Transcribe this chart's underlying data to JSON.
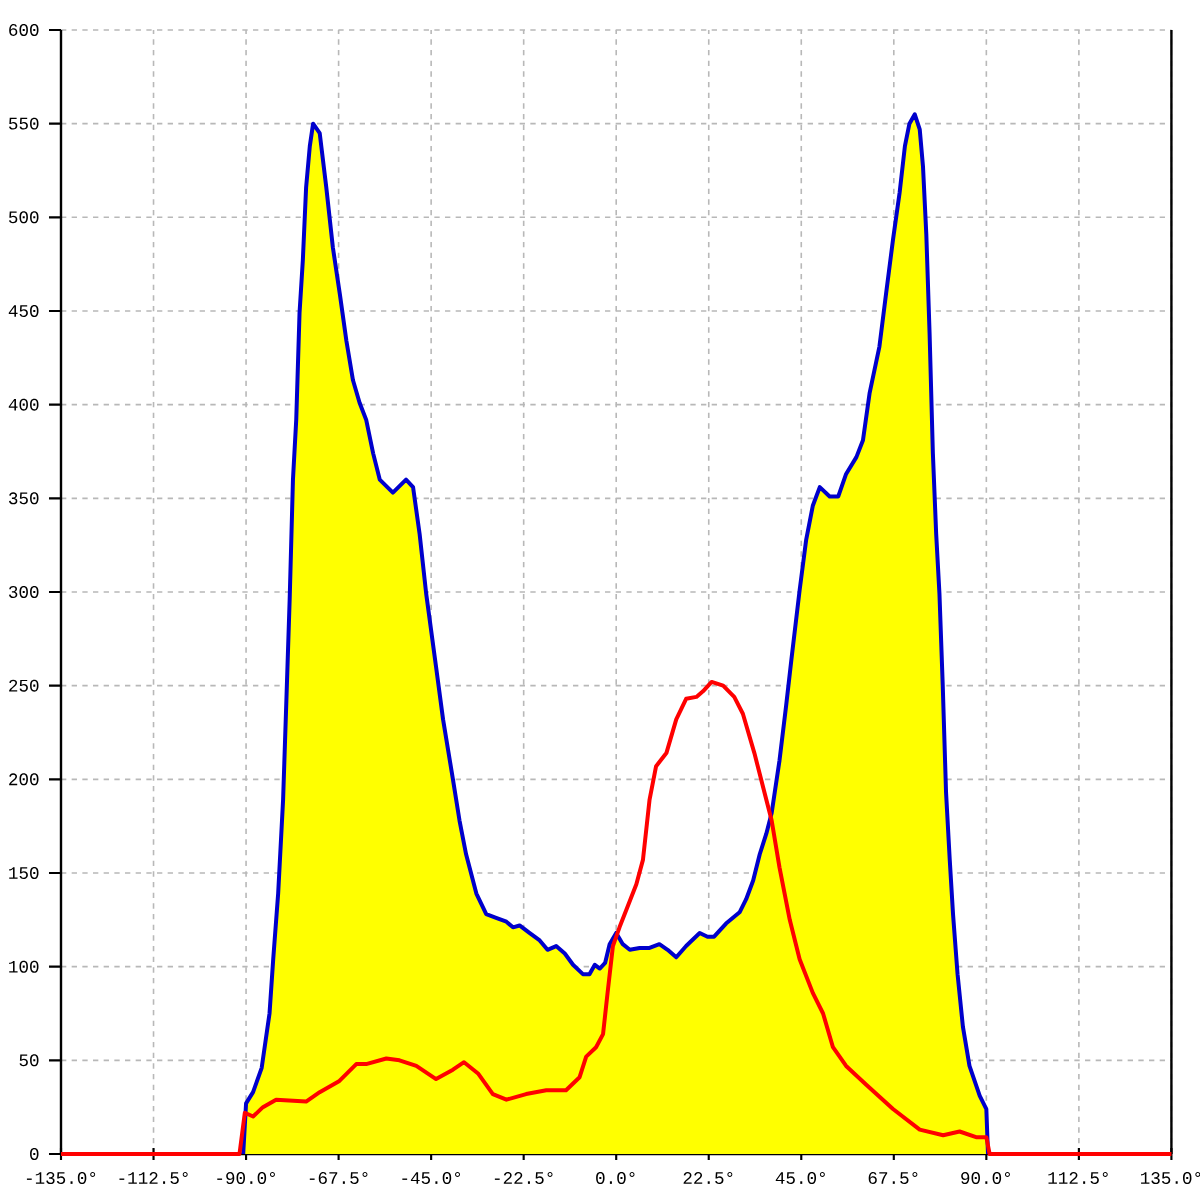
{
  "chart_data": {
    "type": "area",
    "xlim": [
      -135,
      135
    ],
    "xticks": [
      {
        "value": -135,
        "label": "-135.0°"
      },
      {
        "value": -112.5,
        "label": "-112.5°"
      },
      {
        "value": -90,
        "label": "-90.0°"
      },
      {
        "value": -67.5,
        "label": "-67.5°"
      },
      {
        "value": -45,
        "label": "-45.0°"
      },
      {
        "value": -22.5,
        "label": "-22.5°"
      },
      {
        "value": 0,
        "label": "0.0°"
      },
      {
        "value": 22.5,
        "label": "22.5°"
      },
      {
        "value": 45,
        "label": "45.0°"
      },
      {
        "value": 67.5,
        "label": "67.5°"
      },
      {
        "value": 90,
        "label": "90.0°"
      },
      {
        "value": 112.5,
        "label": "112.5°"
      },
      {
        "value": 135,
        "label": "135.0°"
      }
    ],
    "ylim": [
      0,
      600
    ],
    "yticks": [
      0,
      50,
      100,
      150,
      200,
      250,
      300,
      350,
      400,
      450,
      500,
      550,
      600
    ],
    "grid": true,
    "series": [
      {
        "color": "#ffff00",
        "x": [
          -90.7,
          -90.0,
          -88.3,
          -86.2,
          -84.3,
          -83.4,
          -82.2,
          -81.0,
          -80.2,
          -79.4,
          -78.6,
          -77.8,
          -77.0,
          -76.2,
          -75.4,
          -74.5,
          -73.7,
          -72.1,
          -70.5,
          -68.9,
          -67.2,
          -65.6,
          -64.0,
          -62.4,
          -60.8,
          -59.1,
          -57.5,
          -54.3,
          -51.1,
          -49.4,
          -47.8,
          -46.2,
          -43.8,
          -42.1,
          -39.7,
          -38.1,
          -36.5,
          -34.0,
          -31.6,
          -29.2,
          -26.7,
          -25.1,
          -23.5,
          -21.1,
          -18.6,
          -16.7,
          -14.6,
          -12.5,
          -10.5,
          -8.1,
          -6.5,
          -5.2,
          -4.0,
          -2.7,
          -1.6,
          0.0,
          1.6,
          3.3,
          5.7,
          8.1,
          10.5,
          12.5,
          14.6,
          17.0,
          20.3,
          22.2,
          23.8,
          26.7,
          30.0,
          31.6,
          33.3,
          34.9,
          36.5,
          37.8,
          39.7,
          41.3,
          42.6,
          44.6,
          46.2,
          47.8,
          49.5,
          51.9,
          54.0,
          55.9,
          58.4,
          60.0,
          61.6,
          64.0,
          65.6,
          67.3,
          68.9,
          70.2,
          71.3,
          72.6,
          73.8,
          74.6,
          75.4,
          76.2,
          77.0,
          77.8,
          78.6,
          79.4,
          80.2,
          81.1,
          81.9,
          83.0,
          84.3,
          85.9,
          88.4,
          90.0,
          90.4
        ],
        "values": [
          0,
          27,
          33,
          46,
          75,
          104,
          139,
          189,
          242,
          296,
          360,
          392,
          449,
          477,
          516,
          538,
          550,
          545,
          516,
          484,
          459,
          434,
          413,
          401,
          392,
          374,
          360,
          353,
          360,
          356,
          331,
          299,
          260,
          232,
          200,
          178,
          160,
          139,
          128,
          126,
          124,
          121,
          122,
          118,
          114,
          109,
          111,
          107,
          101,
          96,
          96,
          101,
          99,
          102,
          112,
          118,
          112,
          109,
          110,
          110,
          112,
          109,
          105,
          111,
          118,
          116,
          116,
          123,
          129,
          136,
          146,
          160,
          171,
          182,
          210,
          239,
          264,
          301,
          328,
          346,
          356,
          351,
          351,
          363,
          372,
          381,
          406,
          431,
          459,
          488,
          513,
          538,
          550,
          555,
          547,
          527,
          491,
          438,
          374,
          331,
          299,
          250,
          193,
          157,
          128,
          96,
          68,
          47,
          31,
          24,
          0
        ]
      },
      {
        "type": "line",
        "color": "#ff0000",
        "x": [
          -135,
          -91.6,
          -90.3,
          -88.3,
          -85.9,
          -82.7,
          -75.4,
          -72.1,
          -67.3,
          -63.2,
          -60.8,
          -55.9,
          -52.7,
          -48.6,
          -43.8,
          -39.7,
          -37.0,
          -33.6,
          -30.0,
          -26.7,
          -21.9,
          -17.0,
          -12.2,
          -8.9,
          -7.3,
          -4.9,
          -3.2,
          -2.1,
          -0.8,
          0.8,
          2.4,
          4.9,
          6.5,
          8.1,
          9.7,
          12.2,
          14.6,
          17.0,
          19.5,
          21.1,
          23.2,
          26.0,
          28.7,
          30.8,
          33.6,
          35.7,
          37.8,
          39.7,
          42.2,
          44.6,
          47.8,
          50.3,
          52.7,
          55.9,
          60.8,
          67.3,
          73.8,
          79.5,
          83.5,
          87.5,
          90.0,
          90.8,
          135
        ],
        "values": [
          0,
          0,
          22,
          20,
          25,
          29,
          28,
          33,
          39,
          48,
          48,
          51,
          50,
          47,
          40,
          45,
          49,
          43,
          32,
          29,
          32,
          34,
          34,
          41,
          52,
          57,
          64,
          86,
          111,
          121,
          130,
          144,
          157,
          189,
          207,
          214,
          232,
          243,
          244,
          247,
          252,
          250,
          244,
          235,
          214,
          196,
          178,
          153,
          125,
          104,
          86,
          75,
          57,
          47,
          37,
          24,
          13,
          10,
          12,
          9,
          9,
          0,
          0
        ]
      }
    ]
  }
}
